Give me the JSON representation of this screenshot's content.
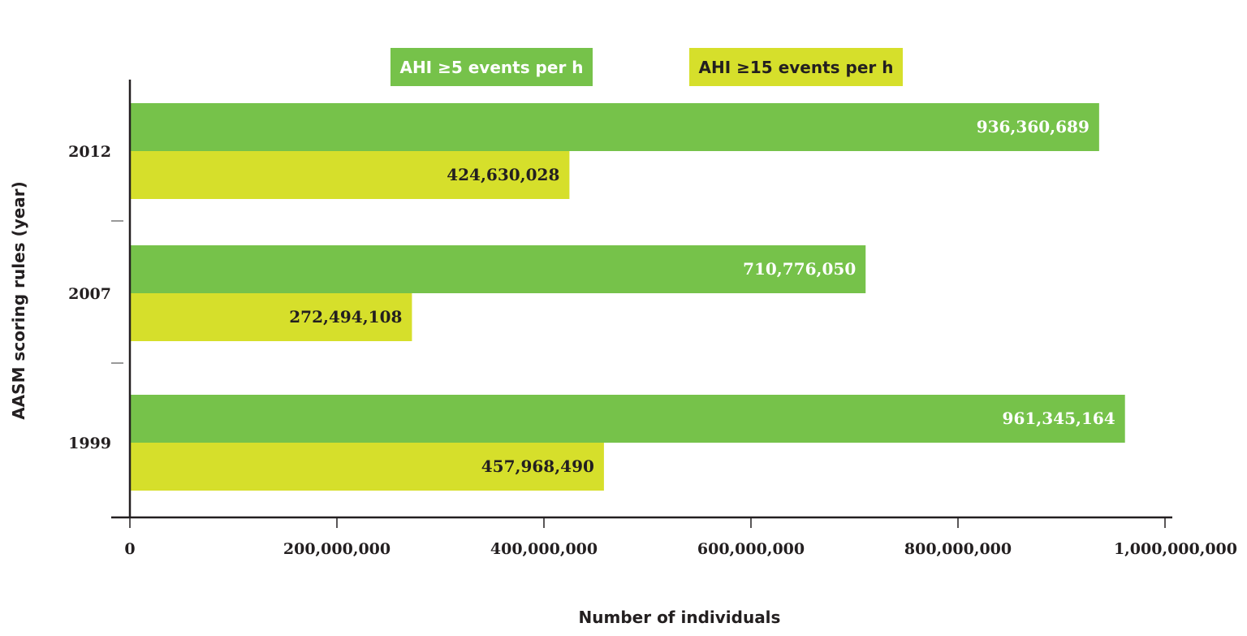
{
  "chart_data": {
    "type": "bar",
    "orientation": "horizontal",
    "categories": [
      "2012",
      "2007",
      "1999"
    ],
    "series": [
      {
        "name": "AHI ≥5 events per h",
        "color": "#76c24a",
        "label_color": "#ffffff",
        "values": [
          936360689,
          710776050,
          961345164
        ],
        "value_labels": [
          "936,360,689",
          "710,776,050",
          "961,345,164"
        ]
      },
      {
        "name": "AHI ≥15 events per h",
        "color": "#d6df2b",
        "label_color": "#231f20",
        "values": [
          424630028,
          272494108,
          457968490
        ],
        "value_labels": [
          "424,630,028",
          "272,494,108",
          "457,968,490"
        ]
      }
    ],
    "xlabel": "Number of individuals",
    "ylabel": "AASM scoring rules (year)",
    "xlim": [
      0,
      1000000000
    ],
    "x_ticks": [
      0,
      200000000,
      400000000,
      600000000,
      800000000,
      1000000000
    ],
    "x_tick_labels": [
      "0",
      "200,000,000",
      "400,000,000",
      "600,000,000",
      "800,000,000",
      "1,000,000,000"
    ],
    "grid": false,
    "legend_position": "top"
  }
}
